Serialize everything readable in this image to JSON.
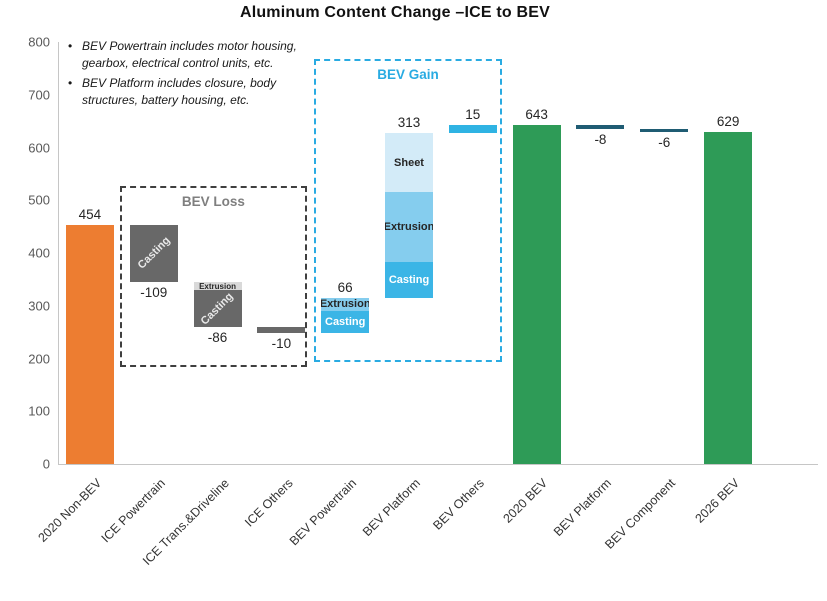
{
  "chart_data": {
    "type": "bar",
    "subtype": "waterfall",
    "title": "Aluminum Content Change –ICE to BEV",
    "ylim": [
      0,
      800
    ],
    "ytick_step": 100,
    "grid": false,
    "legend": false,
    "notes": [
      "BEV Powertrain includes motor housing, gearbox, electrical control units, etc.",
      "BEV Platform includes closure, body structures, battery housing, etc."
    ],
    "bars": [
      {
        "category": "2020 Non-BEV",
        "value": 454,
        "value_label": "454",
        "start": 0,
        "end": 454,
        "color": "#ED7D31"
      },
      {
        "category": "ICE Powertrain",
        "value": -109,
        "value_label": "-109",
        "start": 454,
        "end": 345,
        "color": "#686868",
        "segments": [
          {
            "name": "Casting",
            "value": 109,
            "color": "#686868",
            "text_color": "#E8E8E8",
            "label_style": "diagonal"
          }
        ]
      },
      {
        "category": "ICE Trans.&Driveline",
        "value": -86,
        "value_label": "-86",
        "start": 345,
        "end": 259,
        "color": "#686868",
        "segments": [
          {
            "name": "Extrusion",
            "value": 16,
            "color": "#D9D9D9",
            "text_color": "#262626",
            "label_style": "horizontal"
          },
          {
            "name": "Casting",
            "value": 70,
            "color": "#686868",
            "text_color": "#E8E8E8",
            "label_style": "diagonal"
          }
        ]
      },
      {
        "category": "ICE Others",
        "value": -10,
        "value_label": "-10",
        "start": 259,
        "end": 249,
        "color": "#686868"
      },
      {
        "category": "BEV Powertrain",
        "value": 66,
        "value_label": "66",
        "start": 249,
        "end": 315,
        "color": "#3BB5E6",
        "segments": [
          {
            "name": "Extrusion",
            "value": 25,
            "color": "#85CDEE",
            "text_color": "#262626",
            "label_style": "horizontal"
          },
          {
            "name": "Casting",
            "value": 41,
            "color": "#3BB5E6",
            "text_color": "#FFFFFF",
            "label_style": "horizontal"
          }
        ]
      },
      {
        "category": "BEV Platform",
        "value": 313,
        "value_label": "313",
        "start": 315,
        "end": 628,
        "color": "#3BB5E6",
        "segments": [
          {
            "name": "Sheet",
            "value": 113,
            "color": "#D3EBF8",
            "text_color": "#262626",
            "label_style": "horizontal"
          },
          {
            "name": "Extrusion",
            "value": 132,
            "color": "#85CDEE",
            "text_color": "#262626",
            "label_style": "horizontal"
          },
          {
            "name": "Casting",
            "value": 68,
            "color": "#3BB5E6",
            "text_color": "#FFFFFF",
            "label_style": "horizontal"
          }
        ]
      },
      {
        "category": "BEV Others",
        "value": 15,
        "value_label": "15",
        "start": 628,
        "end": 643,
        "color": "#2FB3E3"
      },
      {
        "category": "2020 BEV",
        "value": 643,
        "value_label": "643",
        "start": 0,
        "end": 643,
        "color": "#2E9B57"
      },
      {
        "category": "BEV Platform",
        "value": -8,
        "value_label": "-8",
        "start": 643,
        "end": 635,
        "color": "#1F5C73"
      },
      {
        "category": "BEV Component",
        "value": -6,
        "value_label": "-6",
        "start": 635,
        "end": 629,
        "color": "#1F5C73"
      },
      {
        "category": "2026 BEV",
        "value": 629,
        "value_label": "629",
        "start": 0,
        "end": 629,
        "color": "#2E9B57"
      }
    ],
    "annotations": [
      {
        "label": "BEV Loss",
        "band_from": 0.97,
        "band_to": 3.9,
        "value_top": 527,
        "value_bottom": 184,
        "border_color": "#3F3F3F",
        "label_color": "#7F7F7F"
      },
      {
        "label": "BEV Gain",
        "band_from": 4.01,
        "band_to": 6.96,
        "value_top": 768,
        "value_bottom": 193,
        "border_color": "#29ABE2",
        "label_color": "#29ABE2"
      }
    ],
    "axis_colors": {
      "tick_text": "#595959",
      "line": "#C6C6C6",
      "xlabel_text": "#333333",
      "value_label_text": "#262626"
    }
  }
}
